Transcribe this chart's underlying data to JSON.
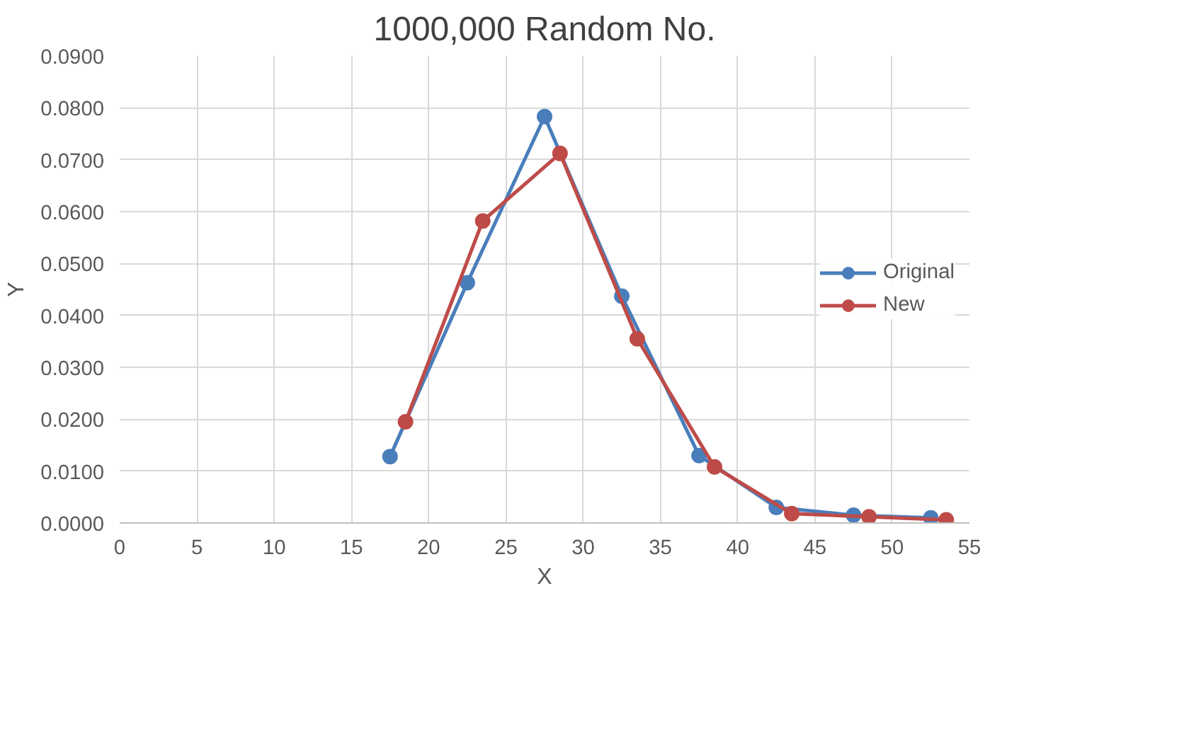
{
  "chart_data": {
    "type": "line",
    "title": "1000,000 Random No.",
    "xlabel": "X",
    "ylabel": "Y",
    "xlim": [
      0,
      55
    ],
    "xticks": [
      0,
      5,
      10,
      15,
      20,
      25,
      30,
      35,
      40,
      45,
      50,
      55
    ],
    "ylim": [
      0,
      0.09
    ],
    "yticks": [
      {
        "value": 0,
        "label": "0.0000"
      },
      {
        "value": 0.01,
        "label": "0.0100"
      },
      {
        "value": 0.02,
        "label": "0.0200"
      },
      {
        "value": 0.03,
        "label": "0.0300"
      },
      {
        "value": 0.04,
        "label": "0.0400"
      },
      {
        "value": 0.05,
        "label": "0.0500"
      },
      {
        "value": 0.06,
        "label": "0.0600"
      },
      {
        "value": 0.07,
        "label": "0.0700"
      },
      {
        "value": 0.08,
        "label": "0.0800"
      },
      {
        "value": 0.09,
        "label": "0.0900"
      }
    ],
    "grid": true,
    "legend": "right",
    "marker": "circle",
    "line_style": "solid",
    "series": [
      {
        "name": "Original",
        "color": "#4a7ebb",
        "x": [
          17.5,
          22.5,
          27.5,
          32.5,
          37.5,
          42.5,
          47.5,
          52.5
        ],
        "values": [
          0.0128,
          0.0463,
          0.0783,
          0.0437,
          0.013,
          0.003,
          0.0015,
          0.001
        ]
      },
      {
        "name": "New",
        "color": "#be4b48",
        "x": [
          18.5,
          23.5,
          28.5,
          33.5,
          38.5,
          43.5,
          48.5,
          53.5
        ],
        "values": [
          0.0195,
          0.0582,
          0.0712,
          0.0355,
          0.0108,
          0.0018,
          0.0012,
          0.0006
        ]
      }
    ]
  }
}
